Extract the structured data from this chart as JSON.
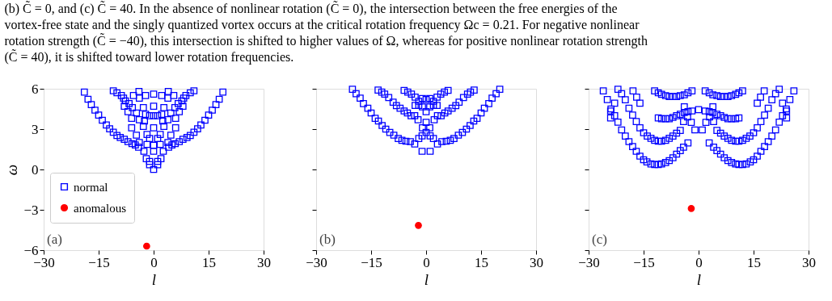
{
  "chart_data": [
    {
      "type": "scatter",
      "xlabel": "l",
      "ylabel": "ω",
      "xlim": [
        -30,
        30
      ],
      "ylim": [
        -6,
        6
      ],
      "xticks": [
        -30,
        -15,
        0,
        15,
        30
      ],
      "yticks": [
        -6,
        -3,
        0,
        3,
        6
      ],
      "legend": "left",
      "annotations": [
        "(b) C̃ = 0, and (c) C̃ = 40. In the absence of nonlinear rotation (C̃ = 0), the intersection between the free energies of the\nvortex-free state and the singly quantized vortex occurs at the critical rotation frequency Ωc = 0.21. For negative nonlinear\nrotation strength (C̃ = −40), this intersection is shifted to higher values of Ω, whereas for positive nonlinear rotation strength\n(C̃ = 40), it is shifted toward lower rotation frequencies.",
        "(a)"
      ],
      "series": [
        {
          "name": "normal",
          "color": "#0000ff",
          "marker": "square",
          "x": [
            0,
            0,
            0,
            0,
            0,
            0,
            0,
            1.1,
            2.0,
            2.65,
            4.1,
            5.0,
            5.9,
            7.0,
            8.0,
            9.1,
            10.0,
            11.0,
            12.0,
            12.9,
            14.0,
            15.0,
            16.0,
            17.0,
            17.9,
            18.9,
            1.1,
            1.8,
            1.8,
            2.8,
            3.9,
            4.7,
            5.8,
            6.7,
            7.7,
            8.8,
            10.0,
            11.0,
            3.9,
            4.7,
            6.0,
            7.0,
            8.0,
            8.2,
            1.1,
            1.1,
            2.2,
            2.8,
            3.9,
            4.0,
            2.2,
            5.5,
            6.0,
            2.5,
            -1.1,
            -2.0,
            -2.65,
            -4.1,
            -5.0,
            -5.9,
            -7.0,
            -8.0,
            -9.1,
            -10.0,
            -11.0,
            -12.0,
            -12.9,
            -14.0,
            -15.0,
            -16.0,
            -17.0,
            -17.9,
            -18.9,
            -1.1,
            -1.8,
            -1.8,
            -2.8,
            -3.9,
            -4.7,
            -5.8,
            -6.7,
            -7.7,
            -8.8,
            -10.0,
            -11.0,
            -3.9,
            -4.7,
            -6.0,
            -7.0,
            -8.0,
            -8.2,
            -1.1,
            -1.1,
            -2.2,
            -2.8,
            -3.9,
            -4.0,
            -2.2,
            -5.5,
            -6.0,
            -2.5
          ],
          "values": [
            0,
            1.35,
            1.8,
            3.1,
            4.0,
            4.7,
            5.6,
            0.35,
            0.8,
            1.35,
            1.66,
            1.82,
            1.92,
            2.07,
            2.24,
            2.38,
            2.53,
            2.77,
            3.02,
            3.31,
            3.66,
            4.04,
            4.41,
            4.82,
            5.22,
            5.75,
            0.6,
            1.86,
            2.6,
            3.2,
            3.7,
            4.2,
            4.6,
            4.9,
            5.1,
            5.5,
            5.7,
            5.85,
            2.0,
            2.55,
            3.1,
            4.3,
            4.7,
            5.3,
            2.3,
            4.0,
            4.1,
            4.6,
            5.3,
            5.8,
            5.5,
            5.5,
            3.8,
            3.6,
            0.35,
            0.8,
            1.35,
            1.66,
            1.82,
            1.92,
            2.07,
            2.24,
            2.38,
            2.53,
            2.77,
            3.02,
            3.31,
            3.66,
            4.04,
            4.41,
            4.82,
            5.22,
            5.75,
            0.6,
            1.86,
            2.6,
            3.2,
            3.7,
            4.2,
            4.6,
            4.9,
            5.1,
            5.5,
            5.7,
            5.85,
            2.0,
            2.55,
            3.1,
            4.3,
            4.7,
            5.3,
            2.3,
            4.0,
            4.1,
            4.6,
            5.3,
            5.8,
            5.5,
            5.5,
            3.8,
            3.6
          ]
        },
        {
          "name": "anomalous",
          "color": "#ff0000",
          "marker": "circle",
          "x": [
            -1.9
          ],
          "values": [
            -5.7
          ]
        }
      ]
    },
    {
      "type": "scatter",
      "xlabel": "l",
      "xlim": [
        -30,
        30
      ],
      "ylim": [
        -6,
        6
      ],
      "xticks": [
        -30,
        -15,
        0,
        15,
        30
      ],
      "yticks": [
        -6,
        -3,
        0,
        3,
        6
      ],
      "tick_labels": "x",
      "annotations": [
        "(b)"
      ],
      "series": [
        {
          "color": "#0000ff",
          "marker": "square",
          "x": [
            0,
            0,
            0,
            0,
            1.1,
            2.0,
            3.1,
            4.3,
            5.5,
            6.6,
            7.6,
            8.8,
            9.9,
            11.0,
            12.0,
            13.0,
            13.9,
            15.0,
            15.9,
            17.1,
            18.0,
            19.1,
            20.1,
            1.0,
            2.2,
            3.1,
            4.1,
            5.1,
            6.0,
            7.1,
            8.1,
            9.0,
            10.2,
            11.3,
            12.1,
            13.1,
            1.0,
            2.0,
            3.0,
            4.0,
            5.0,
            6.0,
            1.1,
            2.0,
            1.0,
            3.0,
            -1.1,
            -2.0,
            -3.1,
            -4.3,
            -5.5,
            -6.6,
            -7.6,
            -8.8,
            -9.9,
            -11.0,
            -12.0,
            -13.0,
            -13.9,
            -15.0,
            -15.9,
            -17.1,
            -18.0,
            -19.1,
            -20.1,
            -1.0,
            -2.2,
            -3.1,
            -4.1,
            -5.1,
            -6.0,
            -7.1,
            -8.1,
            -9.0,
            -10.2,
            -11.3,
            -12.1,
            -13.1,
            -1.0,
            -2.0,
            -3.0,
            -4.0,
            -5.0,
            -6.0,
            -1.1,
            -2.0,
            -1.0,
            -3.0
          ],
          "values": [
            2.75,
            3.5,
            4.3,
            5.2,
            2.5,
            2.3,
            1.9,
            2.07,
            2.1,
            2.17,
            2.3,
            2.55,
            2.75,
            3.0,
            3.27,
            3.6,
            3.8,
            4.2,
            4.55,
            4.9,
            5.3,
            5.63,
            5.96,
            3.1,
            3.7,
            4.0,
            4.0,
            4.2,
            4.35,
            4.55,
            4.75,
            5.0,
            5.35,
            5.6,
            5.75,
            5.9,
            4.65,
            5.07,
            5.38,
            5.6,
            5.75,
            5.88,
            1.35,
            4.76,
            5.28,
            4.76,
            2.5,
            2.3,
            1.9,
            2.07,
            2.1,
            2.17,
            2.3,
            2.55,
            2.75,
            3.0,
            3.27,
            3.6,
            3.8,
            4.2,
            4.55,
            4.9,
            5.3,
            5.63,
            5.96,
            3.1,
            3.7,
            4.0,
            4.0,
            4.2,
            4.35,
            4.55,
            4.75,
            5.0,
            5.35,
            5.6,
            5.75,
            5.9,
            4.65,
            5.07,
            5.38,
            5.6,
            5.75,
            5.88,
            1.35,
            4.76,
            5.28,
            4.76
          ]
        },
        {
          "color": "#ff0000",
          "marker": "circle",
          "x": [
            -2.1
          ],
          "values": [
            -4.16
          ]
        }
      ]
    },
    {
      "type": "scatter",
      "xlabel": "l",
      "xlim": [
        -30,
        30
      ],
      "ylim": [
        -6,
        6
      ],
      "xticks": [
        -30,
        -15,
        0,
        15,
        30
      ],
      "yticks": [
        -6,
        -3,
        0,
        3,
        6
      ],
      "tick_labels": "x",
      "annotations": [
        "(c)"
      ],
      "series": [
        {
          "color": "#0000ff",
          "marker": "square",
          "x": [
            0,
            2.9,
            4.1,
            5.0,
            6.0,
            7.0,
            8.0,
            9.0,
            10.1,
            11.0,
            12.0,
            13.0,
            14.1,
            15.0,
            16.0,
            17.0,
            18.0,
            19.0,
            20.0,
            21.0,
            22.0,
            22.9,
            23.9,
            24.9,
            26.0,
            2.0,
            3.0,
            3.9,
            4.1,
            5.0,
            6.0,
            7.0,
            8.0,
            9.0,
            10.1,
            11.0,
            12.0,
            13.0,
            14.0,
            15.0,
            16.0,
            17.0,
            18.0,
            19.0,
            20.0,
            21.0,
            22.0,
            1.8,
            2.9,
            3.9,
            5.0,
            6.0,
            7.0,
            8.0,
            9.0,
            10.1,
            11.0,
            1.8,
            2.9,
            3.9,
            5.0,
            6.0,
            7.0,
            8.0,
            9.0,
            10.1,
            11.0,
            12.0,
            24.0,
            24.0,
            22.9,
            16.0,
            16.9,
            17.9,
            1.0,
            -2.9,
            -4.1,
            -5.0,
            -6.0,
            -7.0,
            -8.0,
            -9.0,
            -10.1,
            -11.0,
            -12.0,
            -13.0,
            -14.1,
            -15.0,
            -16.0,
            -17.0,
            -18.0,
            -19.0,
            -20.0,
            -21.0,
            -22.0,
            -22.9,
            -23.9,
            -24.9,
            -26.0,
            -2.0,
            -3.0,
            -3.9,
            -4.1,
            -5.0,
            -6.0,
            -7.0,
            -8.0,
            -9.0,
            -10.1,
            -11.0,
            -12.0,
            -13.0,
            -14.0,
            -15.0,
            -16.0,
            -17.0,
            -18.0,
            -19.0,
            -20.0,
            -21.0,
            -22.0,
            -1.8,
            -2.9,
            -3.9,
            -5.0,
            -6.0,
            -7.0,
            -8.0,
            -9.0,
            -10.1,
            -11.0,
            -1.8,
            -2.9,
            -3.9,
            -5.0,
            -6.0,
            -7.0,
            -8.0,
            -9.0,
            -10.1,
            -11.0,
            -12.0,
            -24.0,
            -24.0,
            -22.9,
            -16.0,
            -16.9,
            -17.9,
            -1.0
          ],
          "values": [
            4.45,
            1.97,
            1.66,
            1.4,
            1.14,
            0.87,
            0.66,
            0.52,
            0.41,
            0.37,
            0.37,
            0.41,
            0.56,
            0.72,
            0.99,
            1.35,
            1.7,
            2.07,
            2.48,
            2.94,
            3.52,
            4.0,
            4.5,
            5.2,
            5.84,
            3.5,
            3.9,
            4.66,
            3.56,
            2.9,
            2.7,
            2.48,
            2.32,
            2.17,
            2.1,
            2.1,
            2.17,
            2.32,
            2.48,
            2.73,
            3.1,
            3.56,
            4.04,
            4.55,
            5.18,
            5.63,
            5.96,
            4.35,
            4.3,
            4.24,
            4.1,
            4.0,
            3.87,
            3.77,
            3.77,
            3.77,
            3.83,
            5.84,
            5.7,
            5.55,
            5.49,
            5.42,
            5.42,
            5.42,
            5.49,
            5.59,
            5.7,
            5.84,
            3.83,
            4.35,
            4.93,
            4.93,
            5.38,
            5.84,
            2.94,
            1.97,
            1.66,
            1.4,
            1.14,
            0.87,
            0.66,
            0.52,
            0.41,
            0.37,
            0.37,
            0.41,
            0.56,
            0.72,
            0.99,
            1.35,
            1.7,
            2.07,
            2.48,
            2.94,
            3.52,
            4.0,
            4.5,
            5.2,
            5.84,
            3.5,
            3.9,
            4.66,
            3.56,
            2.9,
            2.7,
            2.48,
            2.32,
            2.17,
            2.1,
            2.1,
            2.17,
            2.32,
            2.48,
            2.73,
            3.1,
            3.56,
            4.04,
            4.55,
            5.18,
            5.63,
            5.96,
            4.35,
            4.3,
            4.24,
            4.1,
            4.0,
            3.87,
            3.77,
            3.77,
            3.77,
            3.83,
            5.84,
            5.7,
            5.55,
            5.49,
            5.42,
            5.42,
            5.42,
            5.49,
            5.59,
            5.7,
            5.84,
            3.83,
            4.35,
            4.93,
            4.93,
            5.38,
            5.84,
            2.94
          ]
        },
        {
          "color": "#ff0000",
          "marker": "circle",
          "x": [
            -2.0
          ],
          "values": [
            -2.9
          ]
        }
      ]
    }
  ]
}
